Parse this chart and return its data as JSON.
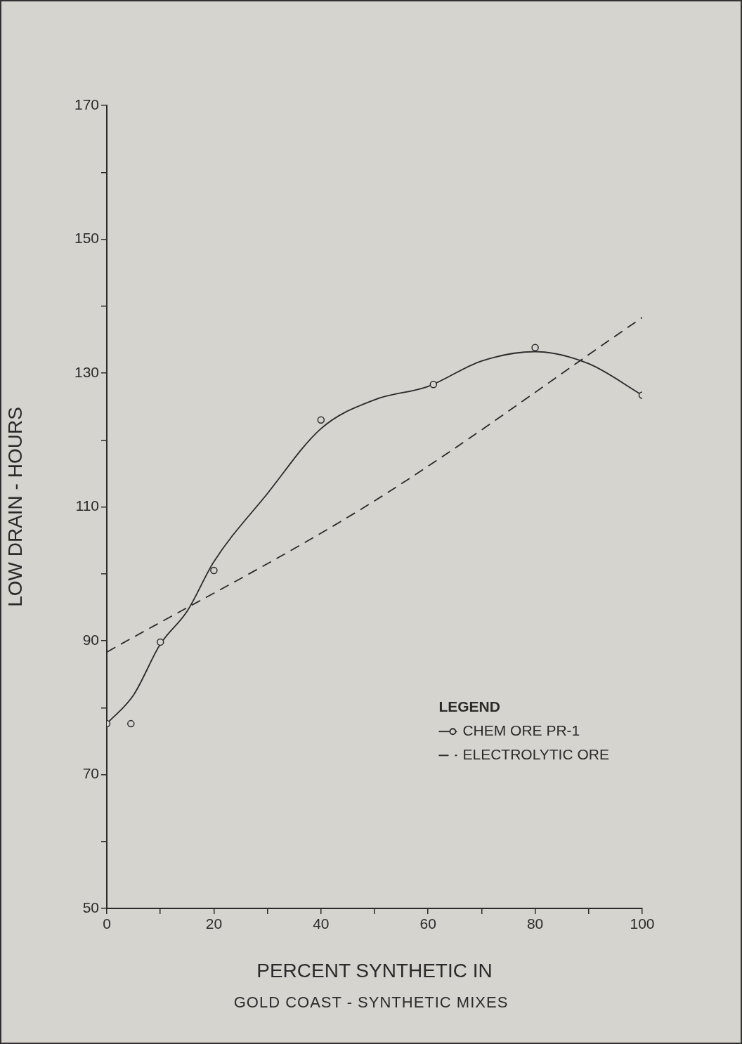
{
  "chart_data": {
    "type": "scatter",
    "xlabel": "PERCENT SYNTHETIC IN",
    "ylabel": "LOW DRAIN - HOURS",
    "legend_title": "LEGEND",
    "legend": "bottom right",
    "grid": false,
    "xlim": [
      0,
      100
    ],
    "ylim": [
      50,
      170
    ],
    "xticks": [
      0,
      {
        "value": 10,
        "label": null
      },
      20,
      {
        "value": 30,
        "label": null
      },
      40,
      {
        "value": 50,
        "label": null
      },
      60,
      {
        "value": 70,
        "label": null
      },
      80,
      {
        "value": 90,
        "label": null
      },
      100
    ],
    "yticks": [
      50,
      {
        "value": 60,
        "label": null
      },
      70,
      {
        "value": 80,
        "label": null
      },
      90,
      {
        "value": 100,
        "label": null
      },
      110,
      {
        "value": 120,
        "label": null
      },
      130,
      {
        "value": 140,
        "label": null
      },
      150,
      {
        "value": 160,
        "label": null
      },
      170
    ],
    "series": [
      {
        "name": "CHEM ORE PR-1",
        "type": "scatter",
        "marker": "circle",
        "color": "#2a2a2a",
        "x": [
          0,
          4.5,
          10,
          20,
          40,
          61,
          80,
          100
        ],
        "values": [
          77.6,
          77.6,
          89.8,
          100.5,
          123,
          128.3,
          133.8,
          126.7
        ]
      },
      {
        "type": "line",
        "marker": "none",
        "line_style": "solid",
        "color": "#2a2a2a",
        "x": [
          0,
          5,
          10,
          15,
          20,
          30,
          40,
          50,
          60,
          70,
          80,
          90,
          100
        ],
        "values": [
          77.6,
          81.9,
          89.5,
          94.4,
          101.8,
          112,
          121.7,
          126,
          128,
          131.8,
          133.2,
          131.4,
          126.7
        ]
      },
      {
        "name": "ELECTROLYTIC ORE",
        "type": "line",
        "marker": "none",
        "line_style": "dashed",
        "color": "#2a2a2a",
        "x": [
          0,
          50,
          100
        ],
        "values": [
          88.3,
          110.9,
          138.3
        ]
      }
    ],
    "annotations": [
      "GOLD COAST - SYNTHETIC MIXES"
    ]
  }
}
